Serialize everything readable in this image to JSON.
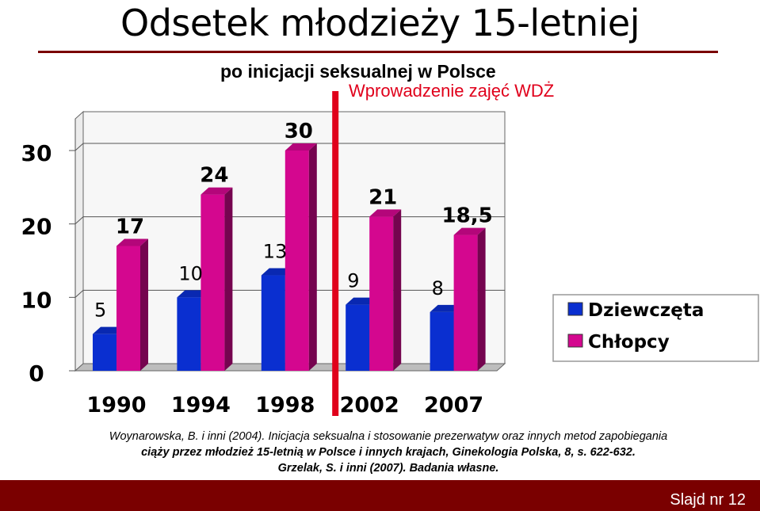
{
  "slide": {
    "title": "Odsetek młodzieży 15-letniej",
    "subtitle": "po inicjacji seksualnej w Polsce",
    "marker_label": "Wprowadzenie zajęć WDŻ",
    "citation_line1": "Woynarowska, B. i inni (2004). Inicjacja seksualna i stosowanie prezerwatyw oraz innych metod zapobiegania",
    "citation_line2": "ciąży przez młodzież 15-letnią w Polsce i innych krajach, Ginekologia Polska, 8, s. 622-632.",
    "citation_line3": "Grzelak, S. i inni (2007). Badania własne.",
    "slide_number": "Slajd nr 12"
  },
  "colors": {
    "girls": "#0a2fd0",
    "boys": "#d4078f",
    "marker": "#e0001b",
    "footer": "#7a0000"
  },
  "chart_data": {
    "type": "bar",
    "categories": [
      "1990",
      "1994",
      "1998",
      "2002",
      "2007"
    ],
    "series": [
      {
        "name": "Dziewczęta",
        "values": [
          5,
          10,
          13,
          9,
          8
        ],
        "labels": [
          "5",
          "10",
          "13",
          "9",
          "8"
        ]
      },
      {
        "name": "Chłopcy",
        "values": [
          17,
          24,
          30,
          21,
          18.5
        ],
        "labels": [
          "17",
          "24",
          "30",
          "21",
          "18,5"
        ]
      }
    ],
    "yticks": [
      "0",
      "10",
      "20",
      "30"
    ],
    "ylim": [
      0,
      30
    ],
    "grid": true,
    "legend_position": "right",
    "marker_between": [
      "1998",
      "2002"
    ]
  }
}
